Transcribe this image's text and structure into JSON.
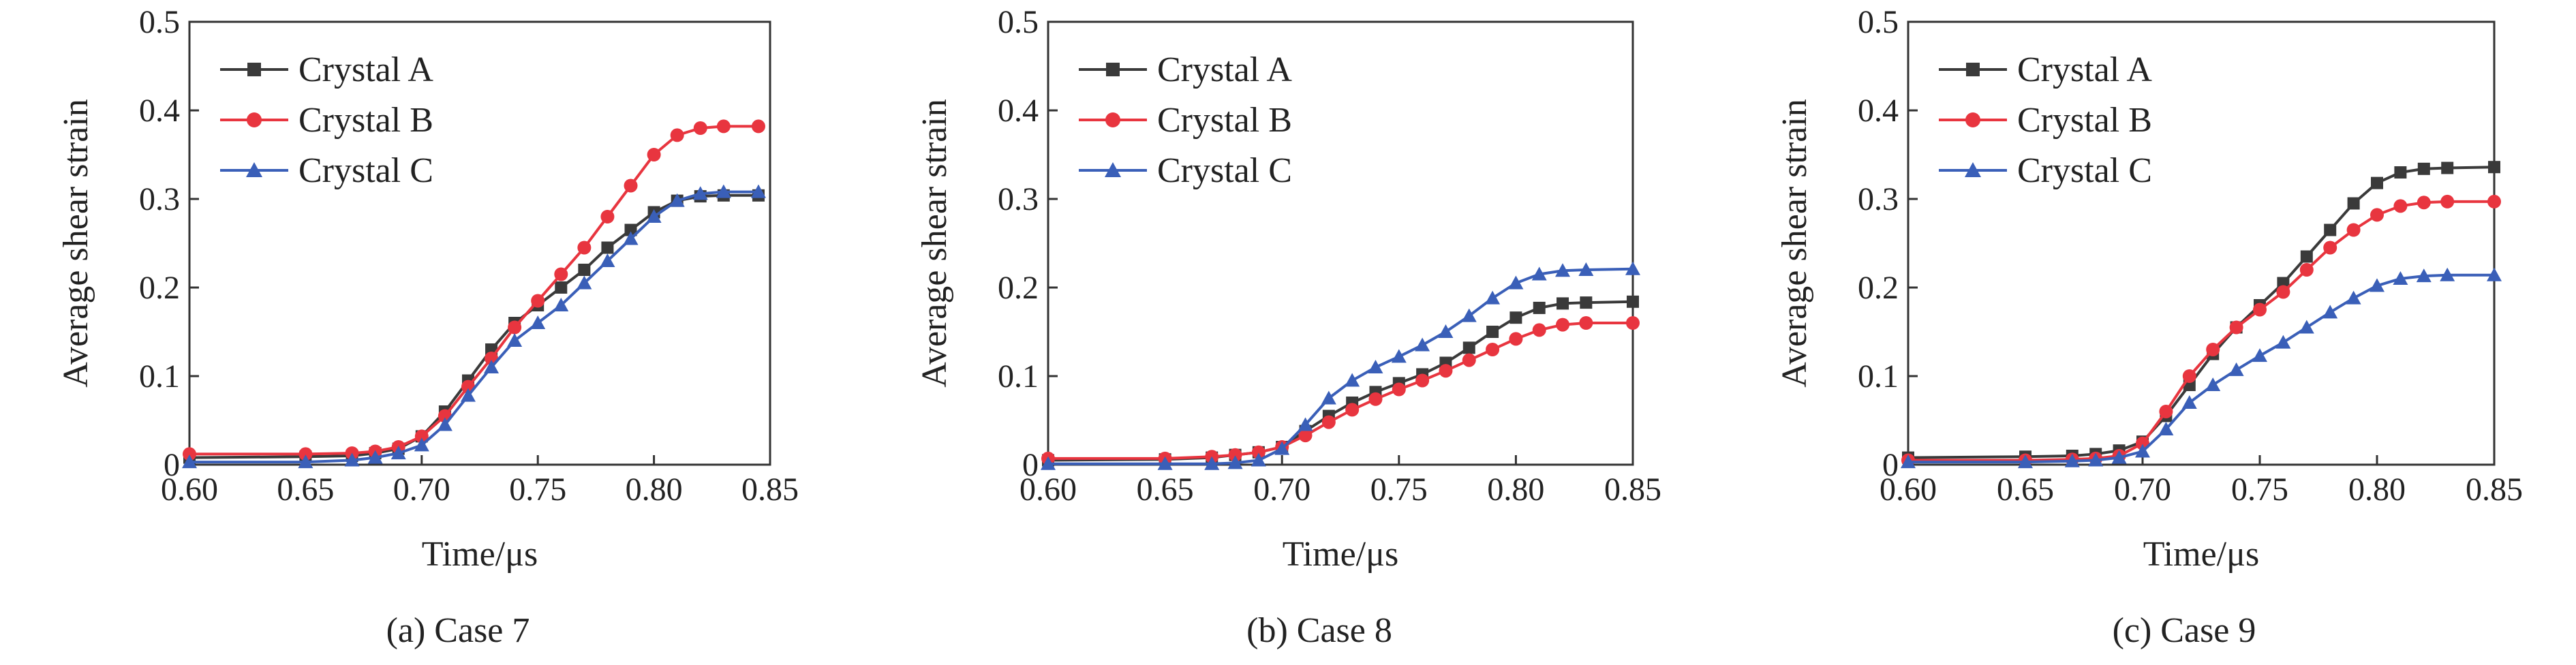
{
  "chart_data": [
    {
      "type": "line",
      "caption": "(a) Case 7",
      "xlabel": "Time/μs",
      "ylabel": "Average shear strain",
      "xlim": [
        0.6,
        0.85
      ],
      "ylim": [
        0,
        0.5
      ],
      "x_ticks": [
        "0.60",
        "0.65",
        "0.70",
        "0.75",
        "0.80",
        "0.85"
      ],
      "y_ticks": [
        "0",
        "0.1",
        "0.2",
        "0.3",
        "0.4",
        "0.5"
      ],
      "legend_position": "top-left",
      "series": [
        {
          "name": "Crystal A",
          "color": "#3a3a3a",
          "marker": "square",
          "points": [
            [
              0.6,
              0.008
            ],
            [
              0.65,
              0.009
            ],
            [
              0.67,
              0.01
            ],
            [
              0.68,
              0.013
            ],
            [
              0.69,
              0.018
            ],
            [
              0.7,
              0.032
            ],
            [
              0.71,
              0.06
            ],
            [
              0.72,
              0.095
            ],
            [
              0.73,
              0.13
            ],
            [
              0.74,
              0.16
            ],
            [
              0.75,
              0.18
            ],
            [
              0.76,
              0.2
            ],
            [
              0.77,
              0.22
            ],
            [
              0.78,
              0.245
            ],
            [
              0.79,
              0.265
            ],
            [
              0.8,
              0.285
            ],
            [
              0.81,
              0.298
            ],
            [
              0.82,
              0.303
            ],
            [
              0.83,
              0.304
            ],
            [
              0.845,
              0.304
            ]
          ]
        },
        {
          "name": "Crystal B",
          "color": "#e8353f",
          "marker": "circle",
          "points": [
            [
              0.6,
              0.012
            ],
            [
              0.65,
              0.012
            ],
            [
              0.67,
              0.013
            ],
            [
              0.68,
              0.015
            ],
            [
              0.69,
              0.02
            ],
            [
              0.7,
              0.032
            ],
            [
              0.71,
              0.055
            ],
            [
              0.72,
              0.088
            ],
            [
              0.73,
              0.12
            ],
            [
              0.74,
              0.155
            ],
            [
              0.75,
              0.185
            ],
            [
              0.76,
              0.215
            ],
            [
              0.77,
              0.245
            ],
            [
              0.78,
              0.28
            ],
            [
              0.79,
              0.315
            ],
            [
              0.8,
              0.35
            ],
            [
              0.81,
              0.372
            ],
            [
              0.82,
              0.38
            ],
            [
              0.83,
              0.382
            ],
            [
              0.845,
              0.382
            ]
          ]
        },
        {
          "name": "Crystal C",
          "color": "#3a5fb8",
          "marker": "triangle",
          "points": [
            [
              0.6,
              0.003
            ],
            [
              0.65,
              0.003
            ],
            [
              0.67,
              0.005
            ],
            [
              0.68,
              0.008
            ],
            [
              0.69,
              0.013
            ],
            [
              0.7,
              0.022
            ],
            [
              0.71,
              0.045
            ],
            [
              0.72,
              0.078
            ],
            [
              0.73,
              0.11
            ],
            [
              0.74,
              0.14
            ],
            [
              0.75,
              0.16
            ],
            [
              0.76,
              0.18
            ],
            [
              0.77,
              0.205
            ],
            [
              0.78,
              0.23
            ],
            [
              0.79,
              0.255
            ],
            [
              0.8,
              0.28
            ],
            [
              0.81,
              0.298
            ],
            [
              0.82,
              0.306
            ],
            [
              0.83,
              0.308
            ],
            [
              0.845,
              0.308
            ]
          ]
        }
      ]
    },
    {
      "type": "line",
      "caption": "(b) Case 8",
      "xlabel": "Time/μs",
      "ylabel": "Average shear strain",
      "xlim": [
        0.6,
        0.85
      ],
      "ylim": [
        0,
        0.5
      ],
      "x_ticks": [
        "0.60",
        "0.65",
        "0.70",
        "0.75",
        "0.80",
        "0.85"
      ],
      "y_ticks": [
        "0",
        "0.1",
        "0.2",
        "0.3",
        "0.4",
        "0.5"
      ],
      "legend_position": "top-left",
      "series": [
        {
          "name": "Crystal A",
          "color": "#3a3a3a",
          "marker": "square",
          "points": [
            [
              0.6,
              0.005
            ],
            [
              0.65,
              0.006
            ],
            [
              0.67,
              0.008
            ],
            [
              0.68,
              0.011
            ],
            [
              0.69,
              0.014
            ],
            [
              0.7,
              0.02
            ],
            [
              0.71,
              0.038
            ],
            [
              0.72,
              0.055
            ],
            [
              0.73,
              0.07
            ],
            [
              0.74,
              0.082
            ],
            [
              0.75,
              0.092
            ],
            [
              0.76,
              0.102
            ],
            [
              0.77,
              0.115
            ],
            [
              0.78,
              0.132
            ],
            [
              0.79,
              0.15
            ],
            [
              0.8,
              0.166
            ],
            [
              0.81,
              0.177
            ],
            [
              0.82,
              0.182
            ],
            [
              0.83,
              0.183
            ],
            [
              0.85,
              0.184
            ]
          ]
        },
        {
          "name": "Crystal B",
          "color": "#e8353f",
          "marker": "circle",
          "points": [
            [
              0.6,
              0.007
            ],
            [
              0.65,
              0.007
            ],
            [
              0.67,
              0.009
            ],
            [
              0.68,
              0.011
            ],
            [
              0.69,
              0.014
            ],
            [
              0.7,
              0.02
            ],
            [
              0.71,
              0.033
            ],
            [
              0.72,
              0.048
            ],
            [
              0.73,
              0.062
            ],
            [
              0.74,
              0.074
            ],
            [
              0.75,
              0.085
            ],
            [
              0.76,
              0.095
            ],
            [
              0.77,
              0.106
            ],
            [
              0.78,
              0.118
            ],
            [
              0.79,
              0.13
            ],
            [
              0.8,
              0.142
            ],
            [
              0.81,
              0.152
            ],
            [
              0.82,
              0.158
            ],
            [
              0.83,
              0.16
            ],
            [
              0.85,
              0.16
            ]
          ]
        },
        {
          "name": "Crystal C",
          "color": "#3a5fb8",
          "marker": "triangle",
          "points": [
            [
              0.6,
              0.001
            ],
            [
              0.65,
              0.001
            ],
            [
              0.67,
              0.001
            ],
            [
              0.68,
              0.002
            ],
            [
              0.69,
              0.005
            ],
            [
              0.7,
              0.018
            ],
            [
              0.71,
              0.045
            ],
            [
              0.72,
              0.075
            ],
            [
              0.73,
              0.095
            ],
            [
              0.74,
              0.11
            ],
            [
              0.75,
              0.122
            ],
            [
              0.76,
              0.135
            ],
            [
              0.77,
              0.15
            ],
            [
              0.78,
              0.168
            ],
            [
              0.79,
              0.188
            ],
            [
              0.8,
              0.205
            ],
            [
              0.81,
              0.215
            ],
            [
              0.82,
              0.219
            ],
            [
              0.83,
              0.22
            ],
            [
              0.85,
              0.221
            ]
          ]
        }
      ]
    },
    {
      "type": "line",
      "caption": "(c) Case 9",
      "xlabel": "Time/μs",
      "ylabel": "Average shear strain",
      "xlim": [
        0.6,
        0.85
      ],
      "ylim": [
        0,
        0.5
      ],
      "x_ticks": [
        "0.60",
        "0.65",
        "0.70",
        "0.75",
        "0.80",
        "0.85"
      ],
      "y_ticks": [
        "0",
        "0.1",
        "0.2",
        "0.3",
        "0.4",
        "0.5"
      ],
      "legend_position": "top-left",
      "series": [
        {
          "name": "Crystal A",
          "color": "#3a3a3a",
          "marker": "square",
          "points": [
            [
              0.6,
              0.008
            ],
            [
              0.65,
              0.009
            ],
            [
              0.67,
              0.01
            ],
            [
              0.68,
              0.012
            ],
            [
              0.69,
              0.016
            ],
            [
              0.7,
              0.026
            ],
            [
              0.71,
              0.055
            ],
            [
              0.72,
              0.09
            ],
            [
              0.73,
              0.125
            ],
            [
              0.74,
              0.155
            ],
            [
              0.75,
              0.18
            ],
            [
              0.76,
              0.205
            ],
            [
              0.77,
              0.235
            ],
            [
              0.78,
              0.265
            ],
            [
              0.79,
              0.295
            ],
            [
              0.8,
              0.318
            ],
            [
              0.81,
              0.33
            ],
            [
              0.82,
              0.334
            ],
            [
              0.83,
              0.335
            ],
            [
              0.85,
              0.336
            ]
          ]
        },
        {
          "name": "Crystal B",
          "color": "#e8353f",
          "marker": "circle",
          "points": [
            [
              0.6,
              0.005
            ],
            [
              0.65,
              0.005
            ],
            [
              0.67,
              0.006
            ],
            [
              0.68,
              0.007
            ],
            [
              0.69,
              0.01
            ],
            [
              0.7,
              0.024
            ],
            [
              0.71,
              0.06
            ],
            [
              0.72,
              0.1
            ],
            [
              0.73,
              0.13
            ],
            [
              0.74,
              0.155
            ],
            [
              0.75,
              0.175
            ],
            [
              0.76,
              0.195
            ],
            [
              0.77,
              0.22
            ],
            [
              0.78,
              0.245
            ],
            [
              0.79,
              0.265
            ],
            [
              0.8,
              0.282
            ],
            [
              0.81,
              0.292
            ],
            [
              0.82,
              0.296
            ],
            [
              0.83,
              0.297
            ],
            [
              0.85,
              0.297
            ]
          ]
        },
        {
          "name": "Crystal C",
          "color": "#3a5fb8",
          "marker": "triangle",
          "points": [
            [
              0.6,
              0.003
            ],
            [
              0.65,
              0.003
            ],
            [
              0.67,
              0.004
            ],
            [
              0.68,
              0.005
            ],
            [
              0.69,
              0.008
            ],
            [
              0.7,
              0.015
            ],
            [
              0.71,
              0.04
            ],
            [
              0.72,
              0.07
            ],
            [
              0.73,
              0.09
            ],
            [
              0.74,
              0.107
            ],
            [
              0.75,
              0.123
            ],
            [
              0.76,
              0.138
            ],
            [
              0.77,
              0.155
            ],
            [
              0.78,
              0.172
            ],
            [
              0.79,
              0.188
            ],
            [
              0.8,
              0.202
            ],
            [
              0.81,
              0.21
            ],
            [
              0.82,
              0.213
            ],
            [
              0.83,
              0.214
            ],
            [
              0.85,
              0.214
            ]
          ]
        }
      ]
    }
  ]
}
